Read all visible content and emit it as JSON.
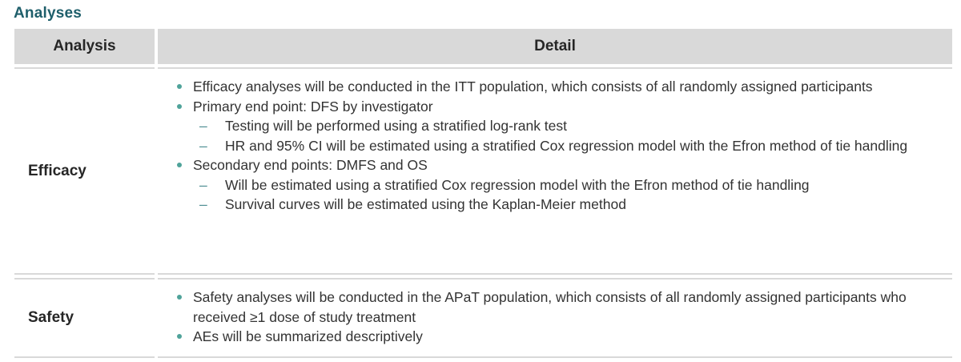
{
  "page": {
    "title": "Analyses"
  },
  "table": {
    "headers": {
      "analysis": "Analysis",
      "detail": "Detail"
    },
    "rows": [
      {
        "label": "Efficacy",
        "items": [
          {
            "level": "bullet",
            "text": "Efficacy analyses will be conducted in the ITT population, which consists of all randomly assigned participants"
          },
          {
            "level": "bullet",
            "text": "Primary end point: DFS by investigator"
          },
          {
            "level": "dash",
            "text": "Testing will be performed using a stratified log-rank test"
          },
          {
            "level": "dash",
            "text": "HR and 95% CI will be estimated using a stratified Cox regression model with the Efron method of tie handling"
          },
          {
            "level": "bullet",
            "text": "Secondary end points: DMFS and OS"
          },
          {
            "level": "dash",
            "text": "Will be estimated using a stratified Cox regression model with the Efron method of tie handling"
          },
          {
            "level": "dash",
            "text": "Survival curves will be estimated using the Kaplan-Meier method"
          }
        ]
      },
      {
        "label": "Safety",
        "items": [
          {
            "level": "bullet",
            "text": "Safety analyses will be conducted in the APaT population, which consists of all randomly assigned participants who received ≥1 dose of study treatment"
          },
          {
            "level": "bullet",
            "text": "AEs will be summarized descriptively"
          }
        ]
      }
    ]
  },
  "colors": {
    "title": "#1f5f6b",
    "header_bg": "#d9d9d9",
    "bullet": "#4fa39a",
    "dash": "#4f8f94"
  }
}
